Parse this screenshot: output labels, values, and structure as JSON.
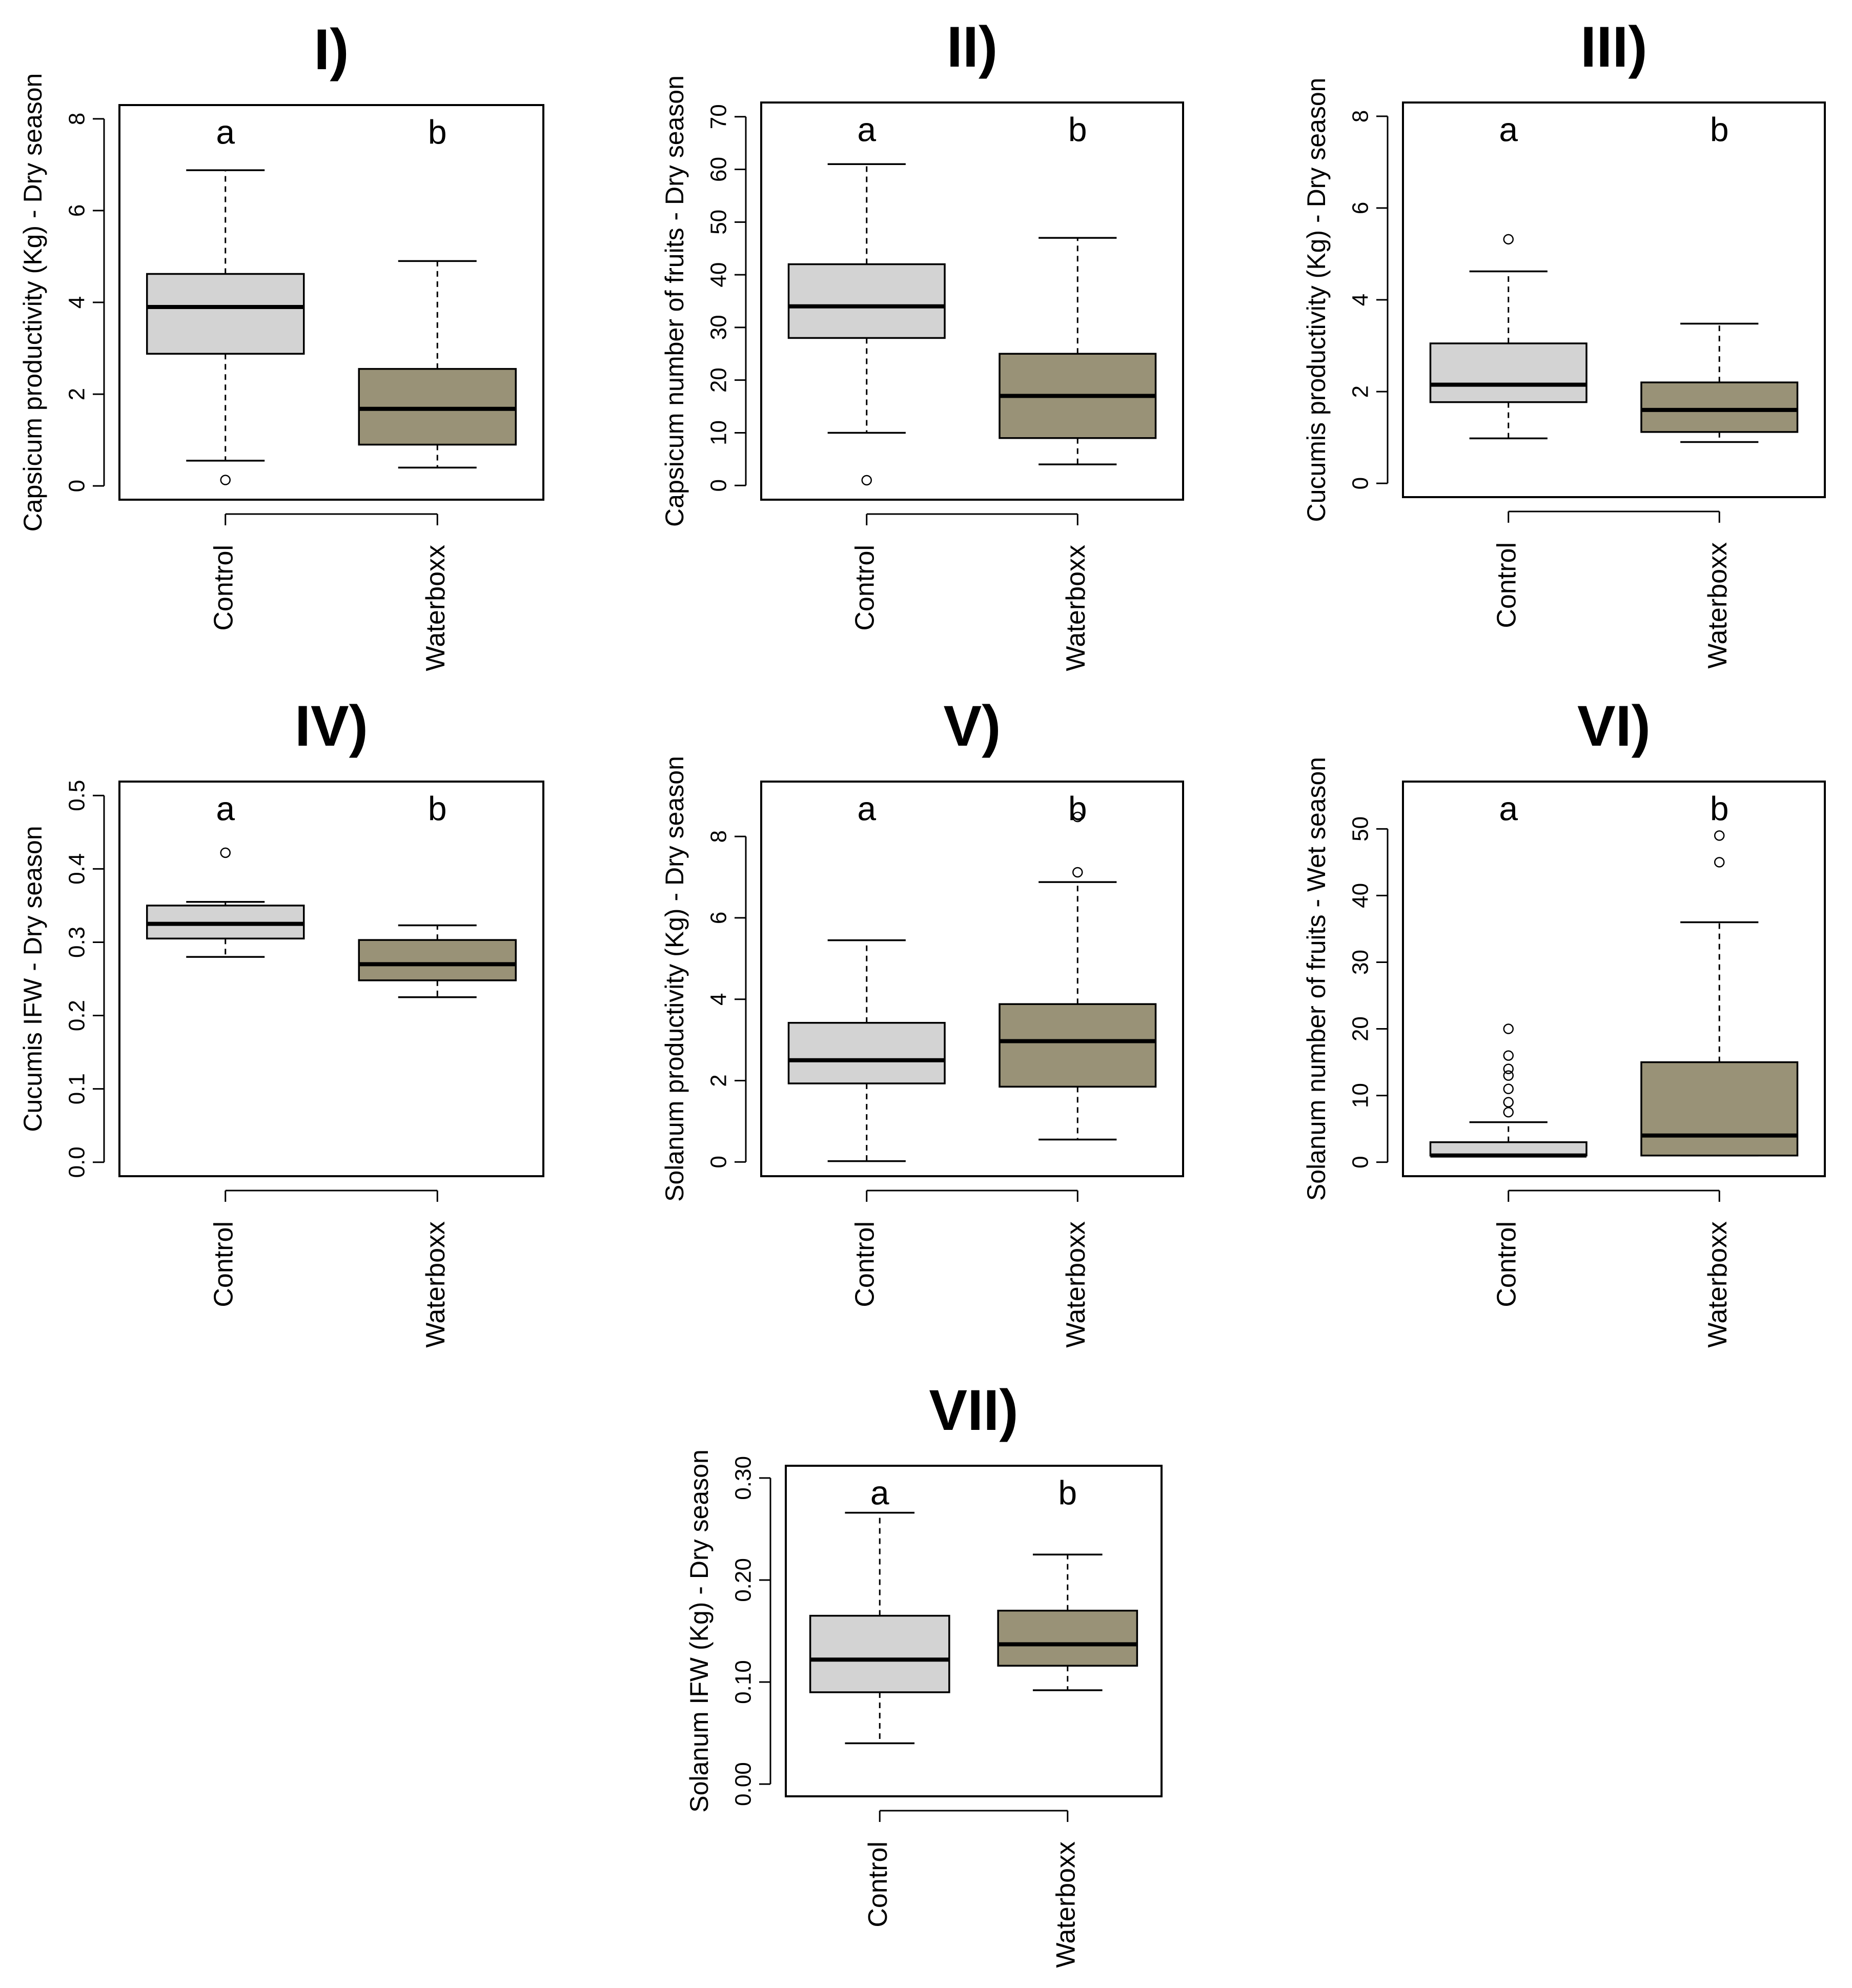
{
  "figure": {
    "background": "#ffffff",
    "box_colors": {
      "Control": "#d3d3d3",
      "Waterboxx": "#999277"
    }
  },
  "chart_data": [
    {
      "type": "boxplot",
      "title": "I)",
      "ylabel": "Capsicum productivity (Kg) - Dry season",
      "categories": [
        "Control",
        "Waterboxx"
      ],
      "ylim": [
        -0.3,
        8.3
      ],
      "yticks": [
        0,
        2,
        4,
        6,
        8
      ],
      "ytick_labels": [
        "0",
        "2",
        "4",
        "6",
        "8"
      ],
      "sig_letters": [
        "a",
        "b"
      ],
      "boxes": [
        {
          "min": 0.55,
          "q1": 2.88,
          "median": 3.9,
          "q3": 4.62,
          "max": 6.88,
          "outliers": [
            0.13
          ]
        },
        {
          "min": 0.4,
          "q1": 0.9,
          "median": 1.68,
          "q3": 2.55,
          "max": 4.9,
          "outliers": []
        }
      ]
    },
    {
      "type": "boxplot",
      "title": "II)",
      "ylabel": "Capsicum number of fruits - Dry season",
      "categories": [
        "Control",
        "Waterboxx"
      ],
      "ylim": [
        -2.7,
        72.7
      ],
      "yticks": [
        0,
        10,
        20,
        30,
        40,
        50,
        60,
        70
      ],
      "ytick_labels": [
        "0",
        "10",
        "20",
        "30",
        "40",
        "50",
        "60",
        "70"
      ],
      "sig_letters": [
        "a",
        "b"
      ],
      "boxes": [
        {
          "min": 10,
          "q1": 28,
          "median": 34,
          "q3": 42,
          "max": 61,
          "outliers": [
            1
          ]
        },
        {
          "min": 4,
          "q1": 9,
          "median": 17,
          "q3": 25,
          "max": 47,
          "outliers": []
        }
      ]
    },
    {
      "type": "boxplot",
      "title": "III)",
      "ylabel": "Cucumis productivity (Kg) - Dry season",
      "categories": [
        "Control",
        "Waterboxx"
      ],
      "ylim": [
        -0.3,
        8.3
      ],
      "yticks": [
        0,
        2,
        4,
        6,
        8
      ],
      "ytick_labels": [
        "0",
        "2",
        "4",
        "6",
        "8"
      ],
      "sig_letters": [
        "a",
        "b"
      ],
      "boxes": [
        {
          "min": 0.98,
          "q1": 1.77,
          "median": 2.15,
          "q3": 3.05,
          "max": 4.62,
          "outliers": [
            5.32
          ]
        },
        {
          "min": 0.9,
          "q1": 1.12,
          "median": 1.6,
          "q3": 2.2,
          "max": 3.48,
          "outliers": []
        }
      ]
    },
    {
      "type": "boxplot",
      "title": "IV)",
      "ylabel": "Cucumis IFW - Dry season",
      "categories": [
        "Control",
        "Waterboxx"
      ],
      "ylim": [
        -0.019,
        0.519
      ],
      "yticks": [
        0.0,
        0.1,
        0.2,
        0.3,
        0.4,
        0.5
      ],
      "ytick_labels": [
        "0.0",
        "0.1",
        "0.2",
        "0.3",
        "0.4",
        "0.5"
      ],
      "sig_letters": [
        "a",
        "b"
      ],
      "boxes": [
        {
          "min": 0.28,
          "q1": 0.305,
          "median": 0.325,
          "q3": 0.35,
          "max": 0.355,
          "outliers": [
            0.422
          ]
        },
        {
          "min": 0.225,
          "q1": 0.248,
          "median": 0.27,
          "q3": 0.303,
          "max": 0.323,
          "outliers": []
        }
      ]
    },
    {
      "type": "boxplot",
      "title": "V)",
      "ylabel": "Solanum productivity (Kg) - Dry season",
      "categories": [
        "Control",
        "Waterboxx"
      ],
      "ylim": [
        -0.35,
        9.35
      ],
      "yticks": [
        0,
        2,
        4,
        6,
        8
      ],
      "ytick_labels": [
        "0",
        "2",
        "4",
        "6",
        "8"
      ],
      "sig_letters": [
        "a",
        "b"
      ],
      "boxes": [
        {
          "min": 0.02,
          "q1": 1.93,
          "median": 2.5,
          "q3": 3.42,
          "max": 5.45,
          "outliers": []
        },
        {
          "min": 0.55,
          "q1": 1.85,
          "median": 2.97,
          "q3": 3.88,
          "max": 6.88,
          "outliers": [
            7.12,
            8.48
          ]
        }
      ]
    },
    {
      "type": "boxplot",
      "title": "VI)",
      "ylabel": "Solanum number of fruits - Wet season",
      "categories": [
        "Control",
        "Waterboxx"
      ],
      "ylim": [
        -2.1,
        57.1
      ],
      "yticks": [
        0,
        10,
        20,
        30,
        40,
        50
      ],
      "ytick_labels": [
        "0",
        "10",
        "20",
        "30",
        "40",
        "50"
      ],
      "sig_letters": [
        "a",
        "b"
      ],
      "boxes": [
        {
          "min": 1,
          "q1": 1,
          "median": 1,
          "q3": 3,
          "max": 6,
          "outliers": [
            7.5,
            9,
            11,
            13,
            14,
            16,
            20
          ]
        },
        {
          "min": 1,
          "q1": 1,
          "median": 4,
          "q3": 15,
          "max": 36,
          "outliers": [
            45,
            49
          ]
        }
      ]
    },
    {
      "type": "boxplot",
      "title": "VII)",
      "ylabel": "Solanum IFW (Kg) - Dry season",
      "categories": [
        "Control",
        "Waterboxx"
      ],
      "ylim": [
        -0.012,
        0.312
      ],
      "yticks": [
        0.0,
        0.1,
        0.2,
        0.3
      ],
      "ytick_labels": [
        "0.00",
        "0.10",
        "0.20",
        "0.30"
      ],
      "sig_letters": [
        "a",
        "b"
      ],
      "boxes": [
        {
          "min": 0.04,
          "q1": 0.09,
          "median": 0.122,
          "q3": 0.165,
          "max": 0.266,
          "outliers": []
        },
        {
          "min": 0.092,
          "q1": 0.116,
          "median": 0.137,
          "q3": 0.17,
          "max": 0.225,
          "outliers": []
        }
      ]
    }
  ]
}
